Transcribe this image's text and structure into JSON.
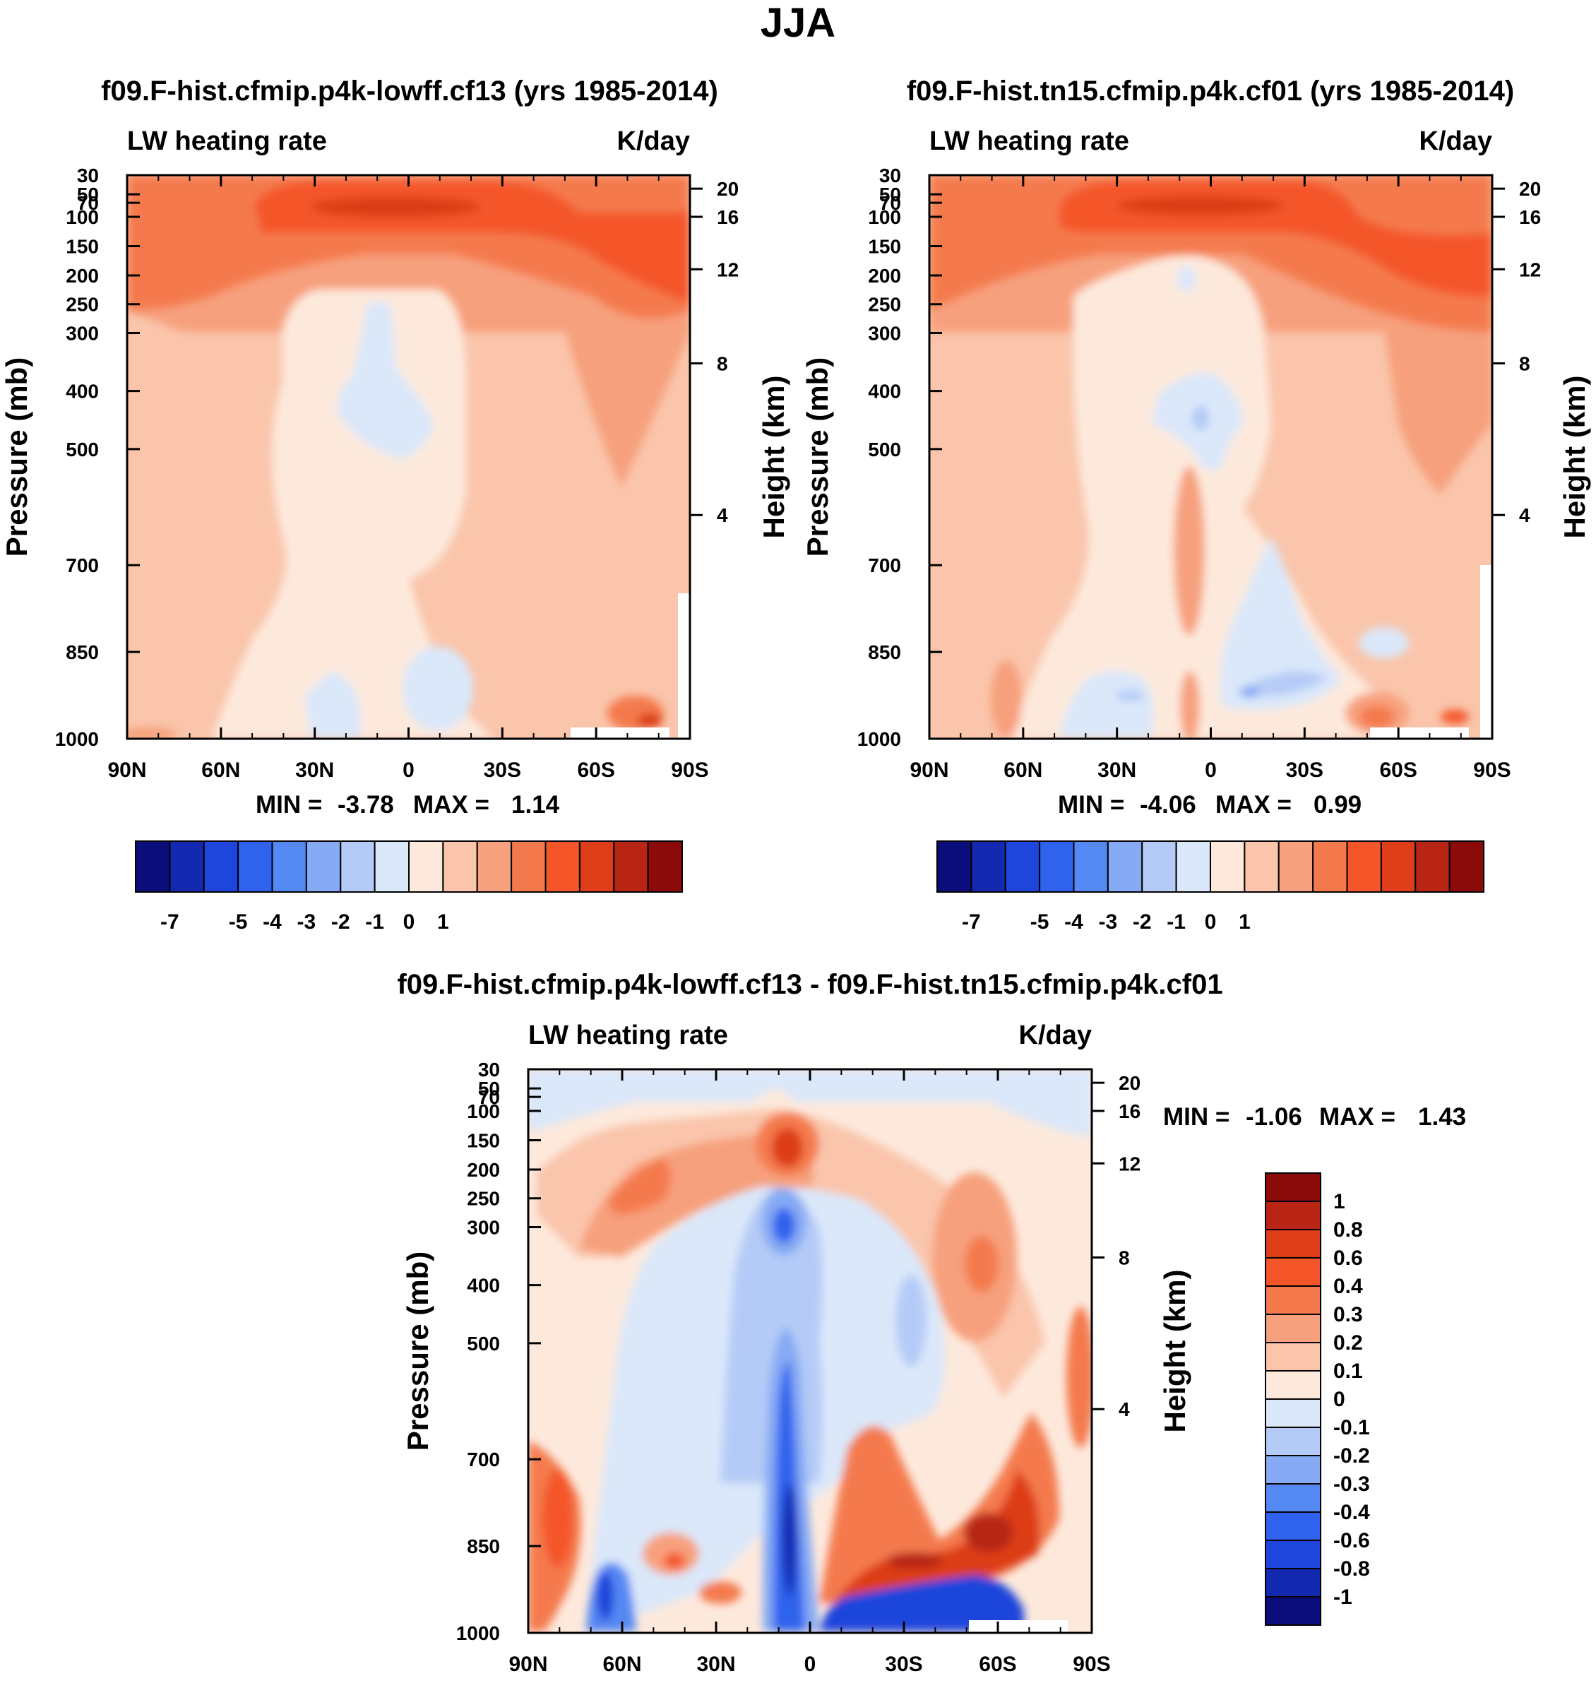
{
  "figure": {
    "title": "JJA"
  },
  "chart_data": [
    {
      "type": "heatmap",
      "title": "f09.F-hist.cfmip.p4k-lowff.cf13 (yrs 1985-2014)",
      "subtitle_left": "LW heating rate",
      "subtitle_right": "K/day",
      "ylabel": "Pressure (mb)",
      "ylabel_right": "Height (km)",
      "xticks": [
        "90N",
        "60N",
        "30N",
        "0",
        "30S",
        "60S",
        "90S"
      ],
      "yticks": [
        "30",
        "50",
        "70",
        "100",
        "150",
        "200",
        "250",
        "300",
        "400",
        "500",
        "700",
        "850",
        "1000"
      ],
      "yticks_right": [
        "20",
        "16",
        "12",
        "8",
        "4"
      ],
      "min": -3.78,
      "max": 1.14,
      "min_label": "MIN =",
      "min_value": "-3.78",
      "max_label": "MAX =",
      "max_value": "1.14",
      "levels": [
        "-7",
        "-5",
        "-4",
        "-3",
        "-2",
        "-1",
        "0",
        "1"
      ],
      "colors": [
        "#0b0e7a",
        "#1329b0",
        "#1e45dc",
        "#2f63ee",
        "#5488f3",
        "#86aaf4",
        "#b5cbf7",
        "#dae8fa",
        "#fde9dc",
        "#fac5ab",
        "#f7a07d",
        "#f47a4d",
        "#f4562a",
        "#dd3d18",
        "#b82514",
        "#8b0b0b"
      ]
    },
    {
      "type": "heatmap",
      "title": "f09.F-hist.tn15.cfmip.p4k.cf01 (yrs 1985-2014)",
      "subtitle_left": "LW heating rate",
      "subtitle_right": "K/day",
      "ylabel": "Pressure (mb)",
      "ylabel_right": "Height (km)",
      "xticks": [
        "90N",
        "60N",
        "30N",
        "0",
        "30S",
        "60S",
        "90S"
      ],
      "yticks": [
        "30",
        "50",
        "70",
        "100",
        "150",
        "200",
        "250",
        "300",
        "400",
        "500",
        "700",
        "850",
        "1000"
      ],
      "yticks_right": [
        "20",
        "16",
        "12",
        "8",
        "4"
      ],
      "min": -4.06,
      "max": 0.99,
      "min_label": "MIN =",
      "min_value": "-4.06",
      "max_label": "MAX =",
      "max_value": "0.99",
      "levels": [
        "-7",
        "-5",
        "-4",
        "-3",
        "-2",
        "-1",
        "0",
        "1"
      ],
      "colors": [
        "#0b0e7a",
        "#1329b0",
        "#1e45dc",
        "#2f63ee",
        "#5488f3",
        "#86aaf4",
        "#b5cbf7",
        "#dae8fa",
        "#fde9dc",
        "#fac5ab",
        "#f7a07d",
        "#f47a4d",
        "#f4562a",
        "#dd3d18",
        "#b82514",
        "#8b0b0b"
      ]
    },
    {
      "type": "heatmap",
      "title": "f09.F-hist.cfmip.p4k-lowff.cf13 - f09.F-hist.tn15.cfmip.p4k.cf01",
      "subtitle_left": "LW heating rate",
      "subtitle_right": "K/day",
      "ylabel": "Pressure (mb)",
      "ylabel_right": "Height (km)",
      "xticks": [
        "90N",
        "60N",
        "30N",
        "0",
        "30S",
        "60S",
        "90S"
      ],
      "yticks": [
        "30",
        "50",
        "70",
        "100",
        "150",
        "200",
        "250",
        "300",
        "400",
        "500",
        "700",
        "850",
        "1000"
      ],
      "yticks_right": [
        "20",
        "16",
        "12",
        "8",
        "4"
      ],
      "min": -1.06,
      "max": 1.43,
      "min_label": "MIN =",
      "min_value": "-1.06",
      "max_label": "MAX =",
      "max_value": "1.43",
      "levels": [
        "1",
        "0.8",
        "0.6",
        "0.4",
        "0.3",
        "0.2",
        "0.1",
        "0",
        "-0.1",
        "-0.2",
        "-0.3",
        "-0.4",
        "-0.6",
        "-0.8",
        "-1"
      ],
      "colors": [
        "#8b0b0b",
        "#b82514",
        "#dd3d18",
        "#f4562a",
        "#f47a4d",
        "#f7a07d",
        "#fac5ab",
        "#fde9dc",
        "#dae8fa",
        "#b5cbf7",
        "#86aaf4",
        "#5488f3",
        "#2f63ee",
        "#1e45dc",
        "#1329b0",
        "#0b0e7a"
      ]
    }
  ]
}
